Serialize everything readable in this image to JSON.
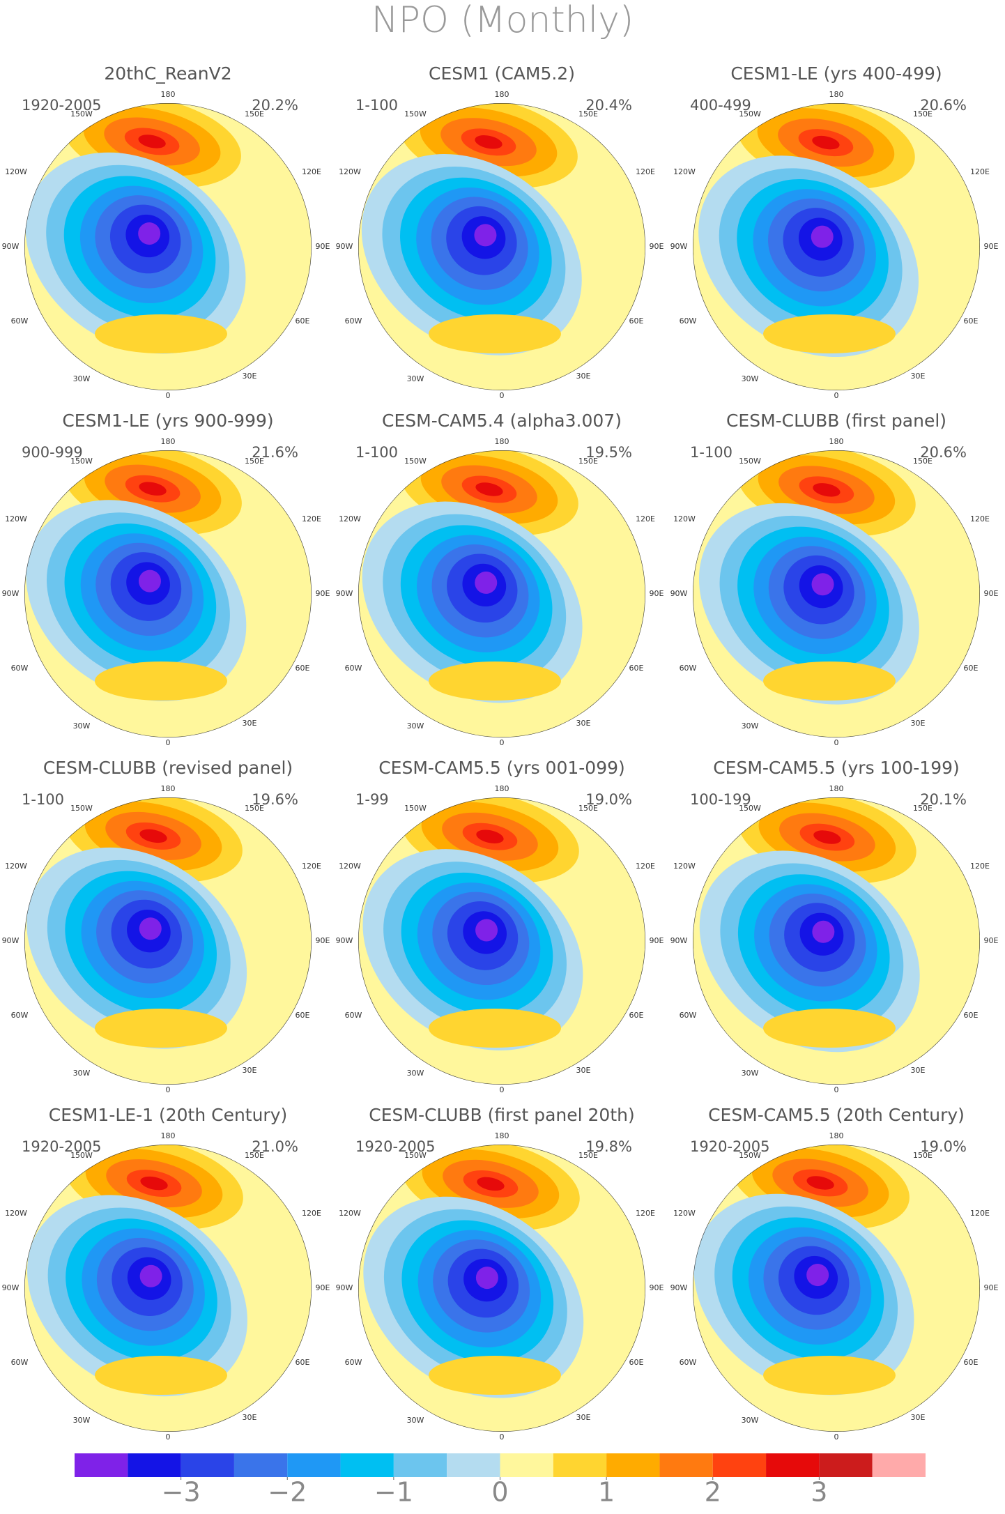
{
  "title": "NPO (Monthly)",
  "panels": [
    {
      "title": "20thC_ReanV2",
      "period": "1920-2005",
      "percent": "20.2%"
    },
    {
      "title": "CESM1 (CAM5.2)",
      "period": "1-100",
      "percent": "20.4%"
    },
    {
      "title": "CESM1-LE (yrs 400-499)",
      "period": "400-499",
      "percent": "20.6%"
    },
    {
      "title": "CESM1-LE (yrs 900-999)",
      "period": "900-999",
      "percent": "21.6%"
    },
    {
      "title": "CESM-CAM5.4 (alpha3.007)",
      "period": "1-100",
      "percent": "19.5%"
    },
    {
      "title": "CESM-CLUBB (first panel)",
      "period": "1-100",
      "percent": "20.6%"
    },
    {
      "title": "CESM-CLUBB (revised panel)",
      "period": "1-100",
      "percent": "19.6%"
    },
    {
      "title": "CESM-CAM5.5 (yrs 001-099)",
      "period": "1-99",
      "percent": "19.0%"
    },
    {
      "title": "CESM-CAM5.5 (yrs 100-199)",
      "period": "100-199",
      "percent": "20.1%"
    },
    {
      "title": "CESM1-LE-1 (20th Century)",
      "period": "1920-2005",
      "percent": "21.0%"
    },
    {
      "title": "CESM-CLUBB (first panel 20th)",
      "period": "1920-2005",
      "percent": "19.8%"
    },
    {
      "title": "CESM-CAM5.5 (20th Century)",
      "period": "1920-2005",
      "percent": "19.0%"
    }
  ],
  "longitude_labels": [
    "180",
    "150W",
    "120W",
    "90W",
    "60W",
    "30W",
    "0",
    "30E",
    "60E",
    "90E",
    "120E",
    "150E"
  ],
  "colorbar": {
    "levels": [
      -4,
      -3.5,
      -3,
      -2.5,
      -2,
      -1.5,
      -1,
      -0.5,
      0,
      0.5,
      1,
      1.5,
      2,
      2.5,
      3,
      3.5,
      4
    ],
    "colors": [
      "#7f22e8",
      "#1414e6",
      "#2a44e8",
      "#3a74ea",
      "#1f98f5",
      "#00bff2",
      "#6cc5ee",
      "#b4dcf0",
      "#fff79c",
      "#ffd530",
      "#ffab00",
      "#ff7a10",
      "#ff4210",
      "#e60a0a",
      "#cc1c1c",
      "#ffaaaa"
    ],
    "ticks": [
      {
        "value": -3,
        "label": "−3"
      },
      {
        "value": -2,
        "label": "−2"
      },
      {
        "value": -1,
        "label": "−1"
      },
      0,
      1,
      2,
      3
    ]
  }
}
